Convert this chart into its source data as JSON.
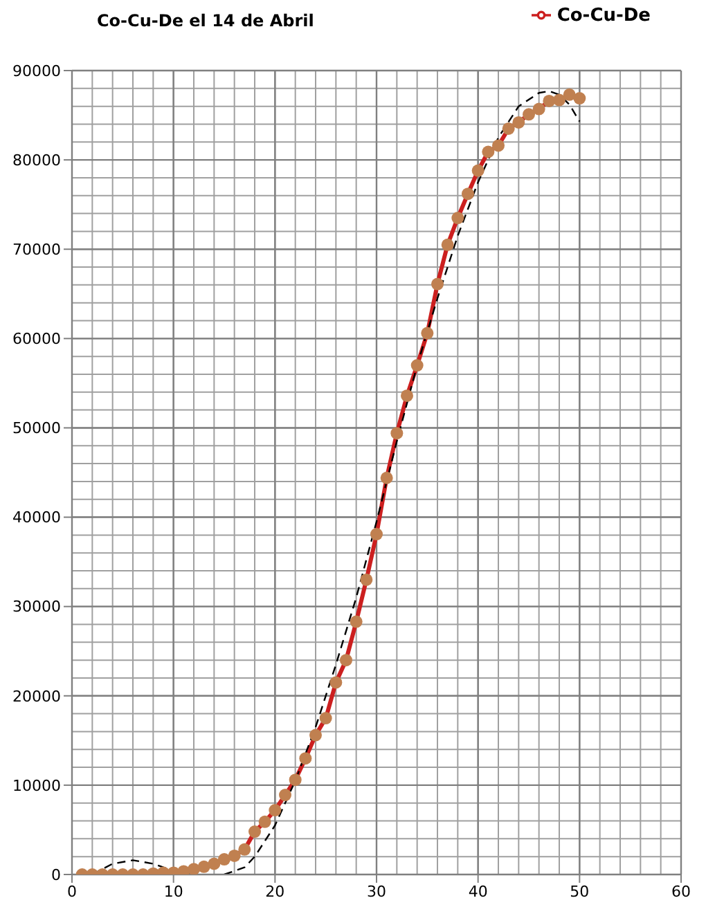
{
  "chart_data": {
    "type": "line",
    "title": "Co-Cu-De el 14 de Abril",
    "x": [
      1,
      2,
      3,
      4,
      5,
      6,
      7,
      8,
      9,
      10,
      11,
      12,
      13,
      14,
      15,
      16,
      17,
      18,
      19,
      20,
      21,
      22,
      23,
      24,
      25,
      26,
      27,
      28,
      29,
      30,
      31,
      32,
      33,
      34,
      35,
      36,
      37,
      38,
      39,
      40,
      41,
      42,
      43,
      44,
      45,
      46,
      47,
      48,
      49,
      50
    ],
    "series": [
      {
        "name": "Co-Cu-De",
        "color": "#cc1f1f",
        "marker": "circle",
        "colors": [
          "#c08050",
          "#c08050",
          "#c08050",
          "#c08050",
          "#c08050",
          "#c08050",
          "#c08050",
          "#c08050",
          "#c08050",
          "#c08050",
          "#c08050",
          "#c08050",
          "#c08050",
          "#c08050",
          "#c08050",
          "#c08050",
          "#c08050",
          "#c08050",
          "#c08050",
          "#c08050",
          "#c08050",
          "#c08050",
          "#c08050",
          "#c08050",
          "#c08050",
          "#c08050",
          "#c08050",
          "#c08050",
          "#c08050",
          "#c08050",
          "#c08050",
          "#c08050",
          "#c08050",
          "#c08050",
          "#c08050",
          "#c08050",
          "#c08050",
          "#c08050",
          "#c08050",
          "#c08050",
          "#c08050",
          "#c08050",
          "#c08050",
          "#c08050",
          "#c08050",
          "#c08050",
          "#c08050",
          "#c08050",
          "#c08050",
          "#c08050"
        ],
        "values": [
          0,
          0,
          0,
          0,
          0,
          0,
          0,
          100,
          200,
          200,
          350,
          600,
          870,
          1200,
          1700,
          2100,
          2800,
          4800,
          5900,
          7200,
          8900,
          10600,
          13000,
          15600,
          17500,
          21500,
          24000,
          28300,
          33000,
          38100,
          44400,
          49400,
          53600,
          57000,
          60600,
          66100,
          70500,
          73500,
          76200,
          78800,
          80900,
          81600,
          83500,
          84200,
          85100,
          85700,
          86600,
          86700,
          87300,
          86900
        ]
      },
      {
        "type": "line",
        "color": "#000000",
        "marker": "none",
        "line_style": "dashed",
        "x": [
          2,
          4,
          6,
          8,
          10,
          12,
          13,
          15,
          17,
          18,
          20,
          22,
          24,
          26,
          28,
          30,
          32,
          34,
          36,
          38,
          40,
          42,
          44,
          46,
          47,
          48,
          49,
          50
        ],
        "values": [
          0,
          1200,
          1600,
          1200,
          400,
          0,
          null,
          0,
          800,
          2000,
          5500,
          10500,
          16500,
          23500,
          31000,
          39500,
          48500,
          57000,
          64500,
          71500,
          77500,
          82500,
          86000,
          87500,
          87700,
          87300,
          86200,
          84300
        ]
      }
    ],
    "xlim": [
      0,
      60
    ],
    "xticks": [
      0,
      10,
      20,
      30,
      40,
      50,
      60
    ],
    "ylim": [
      0,
      90000
    ],
    "yticks": [
      0,
      10000,
      20000,
      30000,
      40000,
      50000,
      60000,
      70000,
      80000,
      90000
    ],
    "grid": true,
    "legend": "top right"
  }
}
